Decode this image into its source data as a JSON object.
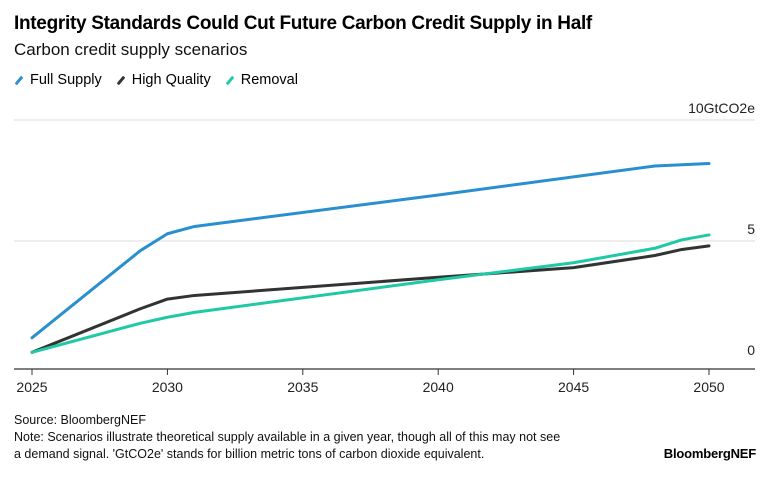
{
  "header": {
    "title": "Integrity Standards Could Cut Future Carbon Credit Supply in Half",
    "subtitle": "Carbon credit supply scenarios"
  },
  "footer": {
    "source": "Source: BloombergNEF",
    "note_line1": "Note: Scenarios illustrate theoretical supply available in a given year, though all of this may not see",
    "note_line2": "a demand signal. 'GtCO2e' stands for billion metric tons of carbon dioxide equivalent.",
    "brand": "BloombergNEF"
  },
  "chart_data": {
    "type": "line",
    "title": "Integrity Standards Could Cut Future Carbon Credit Supply in Half",
    "subtitle": "Carbon credit supply scenarios",
    "xlabel": "",
    "ylabel": "GtCO2e",
    "xlim": [
      2025,
      2050
    ],
    "ylim": [
      0,
      10
    ],
    "x_ticks": [
      2025,
      2030,
      2035,
      2040,
      2045,
      2050
    ],
    "y_ticks": [
      0,
      5,
      10
    ],
    "y_tick_labels": [
      "0",
      "5",
      "10GtCO2e"
    ],
    "grid": true,
    "legend_position": "top-left",
    "series": [
      {
        "name": "Full Supply",
        "color": "#2a8fcf",
        "x": [
          2025,
          2029,
          2030,
          2031,
          2040,
          2048,
          2050
        ],
        "values": [
          1.0,
          4.6,
          5.3,
          5.6,
          6.9,
          8.1,
          8.2
        ]
      },
      {
        "name": "High Quality",
        "color": "#333333",
        "x": [
          2025,
          2029,
          2030,
          2031,
          2040,
          2045,
          2048,
          2049,
          2050
        ],
        "values": [
          0.4,
          2.2,
          2.6,
          2.75,
          3.5,
          3.9,
          4.4,
          4.65,
          4.8
        ]
      },
      {
        "name": "Removal",
        "color": "#1fc9a6",
        "x": [
          2025,
          2029,
          2030,
          2031,
          2040,
          2045,
          2048,
          2049,
          2050
        ],
        "values": [
          0.4,
          1.6,
          1.85,
          2.05,
          3.4,
          4.1,
          4.7,
          5.05,
          5.25
        ]
      }
    ]
  }
}
